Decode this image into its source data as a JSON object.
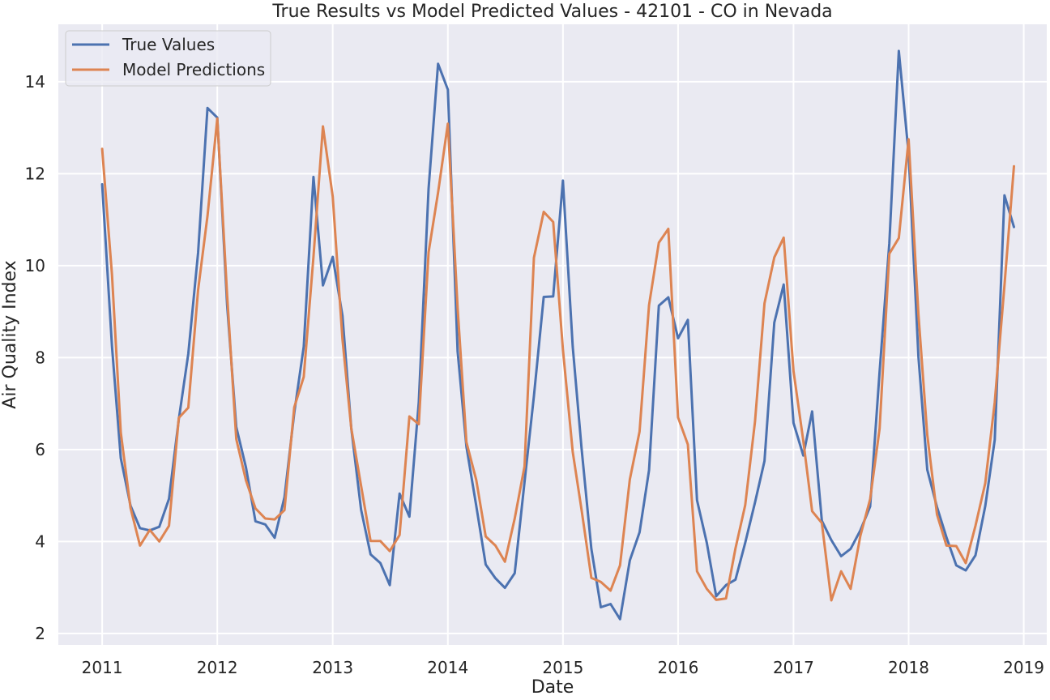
{
  "chart_data": {
    "type": "line",
    "title": "True Results vs Model Predicted Values - 42101 - CO in Nevada",
    "xlabel": "Date",
    "ylabel": "Air Quality Index",
    "xlim": [
      "2010-08-15",
      "2019-03-15"
    ],
    "ylim": [
      1.75,
      15.25
    ],
    "x_ticks": [
      "2011",
      "2012",
      "2013",
      "2014",
      "2015",
      "2016",
      "2017",
      "2018",
      "2019"
    ],
    "y_ticks": [
      2,
      4,
      6,
      8,
      10,
      12,
      14
    ],
    "grid": true,
    "legend_position": "top-left",
    "colors": {
      "true": "#4c72b0",
      "pred": "#dd8452",
      "background": "#eaeaf2",
      "grid": "#ffffff"
    },
    "start_month": "2011-01",
    "series": [
      {
        "name": "True Values",
        "color": "#4c72b0",
        "values": [
          11.77,
          8.25,
          5.81,
          4.78,
          4.29,
          4.24,
          4.32,
          4.93,
          6.66,
          8.08,
          10.28,
          13.43,
          13.22,
          9.15,
          6.49,
          5.61,
          4.44,
          4.37,
          4.08,
          4.96,
          6.8,
          8.24,
          11.93,
          9.57,
          10.19,
          8.91,
          6.46,
          4.69,
          3.72,
          3.53,
          3.05,
          5.04,
          4.54,
          7.03,
          11.68,
          14.39,
          13.83,
          8.14,
          6.06,
          4.78,
          3.5,
          3.2,
          2.99,
          3.31,
          5.29,
          7.16,
          9.32,
          9.33,
          11.85,
          8.24,
          6.03,
          3.84,
          2.57,
          2.64,
          2.31,
          3.59,
          4.2,
          5.55,
          9.13,
          9.31,
          8.42,
          8.82,
          4.9,
          3.97,
          2.81,
          3.05,
          3.17,
          3.97,
          4.85,
          5.75,
          8.76,
          9.59,
          6.58,
          5.87,
          6.83,
          4.45,
          4.03,
          3.68,
          3.84,
          4.24,
          4.76,
          7.7,
          10.49,
          14.67,
          12.43,
          8.02,
          5.56,
          4.75,
          4.09,
          3.48,
          3.37,
          3.7,
          4.77,
          6.21,
          11.53,
          10.84
        ]
      },
      {
        "name": "Model Predictions",
        "color": "#dd8452",
        "values": [
          12.54,
          9.81,
          6.37,
          4.73,
          3.91,
          4.25,
          4.0,
          4.34,
          6.69,
          6.91,
          9.47,
          11.08,
          13.2,
          9.37,
          6.23,
          5.33,
          4.72,
          4.5,
          4.48,
          4.68,
          6.92,
          7.58,
          10.19,
          13.03,
          11.5,
          8.4,
          6.46,
          5.21,
          4.01,
          4.01,
          3.79,
          4.14,
          6.72,
          6.55,
          10.29,
          11.59,
          13.09,
          9.09,
          6.16,
          5.34,
          4.11,
          3.91,
          3.56,
          4.5,
          5.63,
          10.17,
          11.17,
          10.95,
          8.18,
          5.95,
          4.69,
          3.21,
          3.12,
          2.93,
          3.48,
          5.35,
          6.39,
          9.14,
          10.5,
          10.8,
          6.7,
          6.11,
          3.35,
          2.97,
          2.73,
          2.76,
          3.85,
          4.79,
          6.61,
          9.18,
          10.18,
          10.61,
          7.71,
          6.19,
          4.66,
          4.4,
          2.72,
          3.35,
          2.97,
          4.12,
          4.92,
          6.46,
          10.26,
          10.6,
          12.75,
          8.94,
          6.32,
          4.59,
          3.91,
          3.9,
          3.53,
          4.34,
          5.27,
          7.03,
          9.57,
          12.16
        ]
      }
    ]
  }
}
